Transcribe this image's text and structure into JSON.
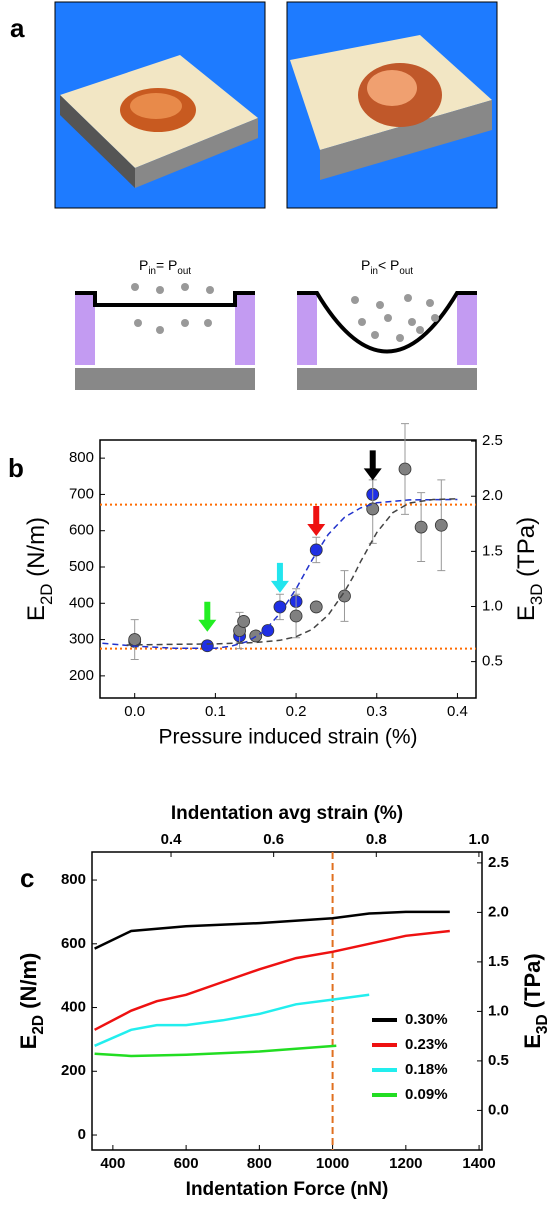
{
  "panel_labels": [
    "a",
    "b",
    "c"
  ],
  "panel_a": {
    "left_condition": [
      "P",
      "in",
      "= P",
      "out"
    ],
    "right_condition": [
      "P",
      "in",
      "< P",
      "out"
    ]
  },
  "chart_data": [
    {
      "type": "scatter",
      "xlabel": "Pressure induced strain (%)",
      "ylabel": [
        "E",
        "2D",
        " (N/m)"
      ],
      "y2label": [
        "E",
        "3D",
        " (TPa)"
      ],
      "xlim": [
        -0.043,
        0.423
      ],
      "ylim": [
        139,
        850
      ],
      "y2lim": [
        0.17,
        2.51
      ],
      "xticks": [
        {
          "value": 0,
          "label": "0.0"
        },
        0.1,
        0.2,
        0.3,
        0.4
      ],
      "yticks": [
        200,
        300,
        400,
        500,
        600,
        700,
        800
      ],
      "y2ticks": [
        0.5,
        {
          "value": 1,
          "label": "1.0"
        },
        1.5,
        {
          "value": 2,
          "label": "2.0"
        },
        2.5
      ],
      "series": [
        {
          "color": "#1f2fe6",
          "x": [
            0,
            0.09,
            0.13,
            0.165,
            0.18,
            0.2,
            0.225,
            0.295
          ],
          "values": [
            295,
            283,
            310,
            325,
            390,
            405,
            547,
            700
          ],
          "errors": [
            15,
            10,
            20,
            12,
            35,
            35,
            35,
            40
          ]
        },
        {
          "color": "#808080",
          "x": [
            0,
            0.13,
            0.135,
            0.15,
            0.2,
            0.225,
            0.26,
            0.295,
            0.335,
            0.355,
            0.38
          ],
          "values": [
            300,
            325,
            350,
            310,
            365,
            390,
            420,
            660,
            770,
            610,
            615
          ],
          "errors": [
            55,
            50,
            0,
            0,
            60,
            0,
            70,
            95,
            125,
            95,
            125
          ]
        },
        {
          "color": "#2233cc",
          "style": "dashed",
          "x": [
            -0.04,
            0,
            0.05,
            0.1,
            0.12,
            0.14,
            0.16,
            0.18,
            0.2,
            0.22,
            0.24,
            0.26,
            0.28,
            0.3,
            0.34,
            0.4
          ],
          "values": [
            290,
            282,
            276,
            276,
            282,
            295,
            322,
            372,
            440,
            520,
            590,
            637,
            663,
            677,
            685,
            686
          ]
        },
        {
          "color": "#444444",
          "style": "dashed",
          "x": [
            -0.01,
            0.05,
            0.1,
            0.15,
            0.18,
            0.2,
            0.22,
            0.24,
            0.26,
            0.27,
            0.28,
            0.3,
            0.32,
            0.34,
            0.37,
            0.4
          ],
          "values": [
            285,
            287,
            288,
            292,
            298,
            308,
            328,
            368,
            432,
            470,
            515,
            595,
            650,
            676,
            686,
            688
          ]
        }
      ],
      "hlines": [
        275,
        672
      ],
      "hline_color": "#ff6a00",
      "arrows": [
        {
          "x": 0.09,
          "y": 283,
          "color": "#22ee22"
        },
        {
          "x": 0.18,
          "y": 390,
          "color": "#22e5ee"
        },
        {
          "x": 0.225,
          "y": 547,
          "color": "#ee1111"
        },
        {
          "x": 0.295,
          "y": 700,
          "color": "#000000"
        }
      ]
    },
    {
      "type": "line",
      "xlabel": "Indentation Force (nN)",
      "x2label": "Indentation avg strain (%)",
      "ylabel": [
        "E",
        "2D",
        " (N/m)"
      ],
      "y2label": [
        "E",
        "3D",
        " (TPa)"
      ],
      "xlim": [
        343,
        1408
      ],
      "x2lim": [
        0.246,
        1.006
      ],
      "ylim": [
        -47,
        888
      ],
      "y2lim": [
        -0.4,
        2.61
      ],
      "xticks": [
        400,
        600,
        800,
        1000,
        1200,
        1400
      ],
      "x2ticks": [
        0.4,
        0.6,
        0.8,
        {
          "value": 1,
          "label": "1.0"
        }
      ],
      "yticks": [
        0,
        200,
        400,
        600,
        800
      ],
      "y2ticks": [
        {
          "value": 0,
          "label": "0.0"
        },
        0.5,
        {
          "value": 1,
          "label": "1.0"
        },
        1.5,
        {
          "value": 2,
          "label": "2.0"
        },
        2.5
      ],
      "series": [
        {
          "name": "0.30%",
          "color": "#000000",
          "x": [
            350,
            450,
            600,
            800,
            1000,
            1100,
            1200,
            1320
          ],
          "values": [
            585,
            640,
            655,
            665,
            680,
            695,
            700,
            700
          ]
        },
        {
          "name": "0.23%",
          "color": "#ee1111",
          "x": [
            350,
            450,
            520,
            600,
            700,
            800,
            900,
            1000,
            1100,
            1200,
            1320
          ],
          "values": [
            330,
            390,
            420,
            440,
            480,
            520,
            555,
            575,
            600,
            625,
            640
          ]
        },
        {
          "name": "0.18%",
          "color": "#22eeee",
          "x": [
            350,
            450,
            520,
            600,
            700,
            800,
            900,
            1000,
            1100
          ],
          "values": [
            280,
            330,
            345,
            345,
            360,
            380,
            410,
            425,
            440
          ]
        },
        {
          "name": "0.09%",
          "color": "#22dd22",
          "x": [
            350,
            450,
            600,
            800,
            950,
            1010
          ],
          "values": [
            255,
            248,
            252,
            262,
            275,
            280
          ]
        }
      ],
      "vlines": [
        1000
      ],
      "vline_color": "#e07020",
      "legend": "lower right"
    }
  ]
}
